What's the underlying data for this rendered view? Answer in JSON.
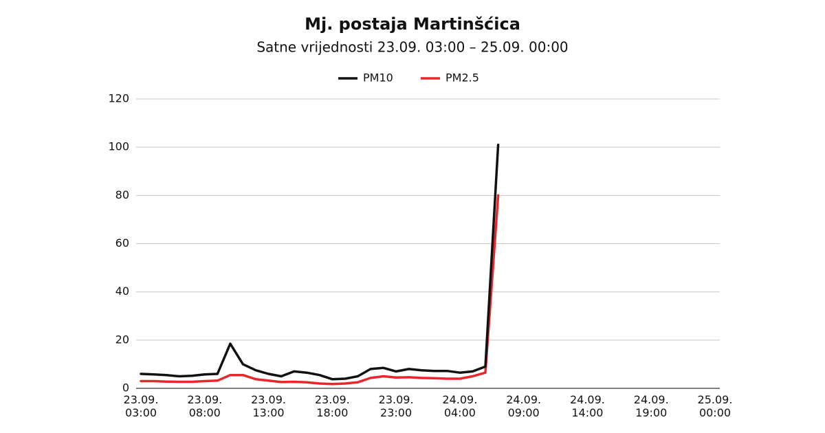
{
  "chart_data": {
    "type": "line",
    "title": "Mj. postaja Martinšćica",
    "subtitle": "Satne vrijednosti 23.09. 03:00 – 25.09. 00:00",
    "categories": [
      "23.09. 03:00",
      null,
      null,
      null,
      null,
      "23.09. 08:00",
      null,
      null,
      null,
      null,
      "23.09. 13:00",
      null,
      null,
      null,
      null,
      "23.09. 18:00",
      null,
      null,
      null,
      null,
      "23.09. 23:00",
      null,
      null,
      null,
      null,
      "24.09. 04:00",
      null,
      null,
      null,
      null,
      "24.09. 09:00",
      null,
      null,
      null,
      null,
      "24.09. 14:00",
      null,
      null,
      null,
      null,
      "24.09. 19:00",
      null,
      null,
      null,
      null,
      "25.09. 00:00"
    ],
    "series": [
      {
        "name": "PM10",
        "color": "#111111",
        "values": [
          6,
          5.8,
          5.5,
          5,
          5.2,
          5.8,
          6,
          18.5,
          10,
          7.5,
          6,
          5,
          7,
          6.5,
          5.5,
          3.8,
          4,
          5,
          8,
          8.5,
          7,
          8,
          7.5,
          7.2,
          7.2,
          6.5,
          7,
          9,
          101,
          null,
          null,
          null,
          null,
          null,
          null,
          null,
          null,
          null,
          null,
          null,
          null,
          null,
          null,
          null,
          null,
          null
        ]
      },
      {
        "name": "PM2.5",
        "color": "#e8262b",
        "values": [
          3,
          3,
          2.8,
          2.7,
          2.7,
          3,
          3.2,
          5.5,
          5.5,
          3.8,
          3.2,
          2.6,
          2.7,
          2.5,
          2,
          1.8,
          2,
          2.5,
          4.3,
          5,
          4.5,
          4.6,
          4.3,
          4.2,
          4,
          4,
          5,
          6.5,
          80,
          null,
          null,
          null,
          null,
          null,
          null,
          null,
          null,
          null,
          null,
          null,
          null,
          null,
          null,
          null,
          null,
          null
        ]
      }
    ],
    "ylim": [
      0,
      120
    ],
    "yticks": [
      0,
      20,
      40,
      60,
      80,
      100,
      120
    ],
    "grid": true,
    "legend": "top"
  }
}
